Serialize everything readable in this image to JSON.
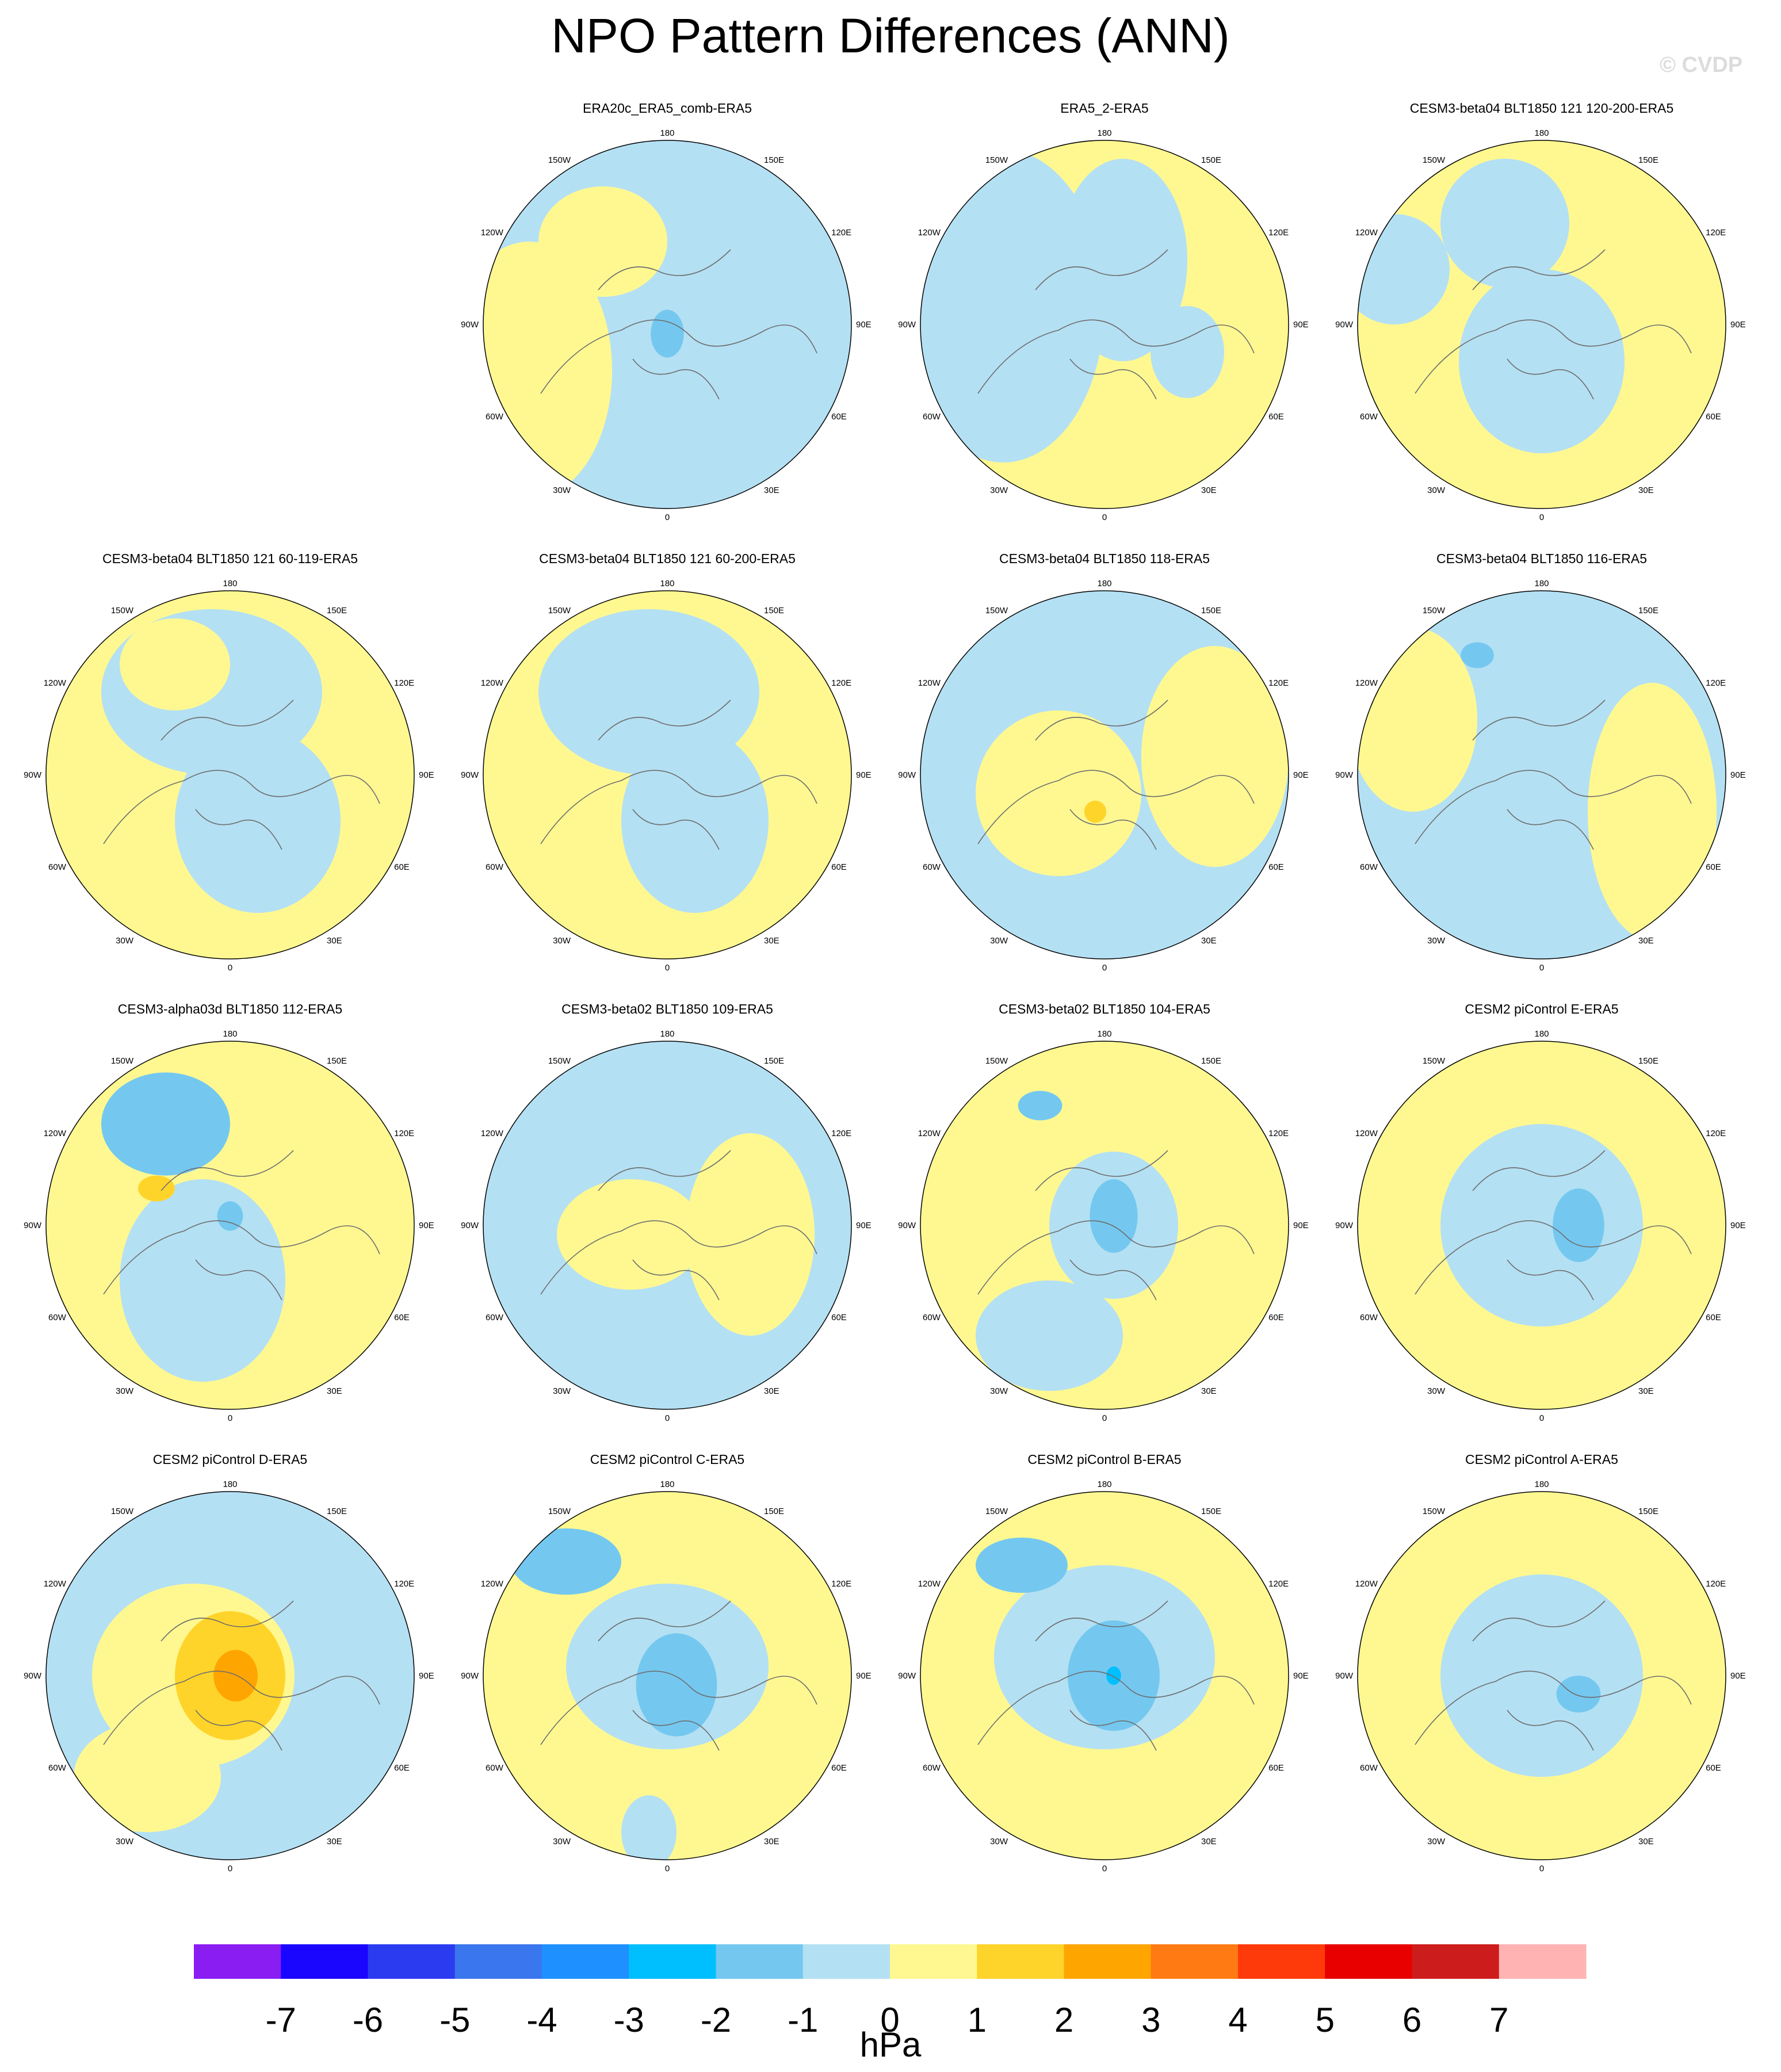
{
  "title": "NPO Pattern Differences (ANN)",
  "watermark": "© CVDP",
  "lon_labels": {
    "top": "180",
    "bottom": "0",
    "left_upper": "120W",
    "left_mid": "90W",
    "left_lower": "60W",
    "right_upper": "120E",
    "right_mid": "90E",
    "right_lower": "60E",
    "top_left": "150W",
    "top_right": "150E",
    "bottom_left": "30W",
    "bottom_right": "30E"
  },
  "panels": [
    {
      "title": "ERA20c_ERA5_comb-ERA5",
      "row": 0,
      "col": 1
    },
    {
      "title": "ERA5_2-ERA5",
      "row": 0,
      "col": 2
    },
    {
      "title": "CESM3-beta04 BLT1850 121 120-200-ERA5",
      "row": 0,
      "col": 3
    },
    {
      "title": "CESM3-beta04 BLT1850 121 60-119-ERA5",
      "row": 1,
      "col": 0
    },
    {
      "title": "CESM3-beta04 BLT1850 121 60-200-ERA5",
      "row": 1,
      "col": 1
    },
    {
      "title": "CESM3-beta04 BLT1850 118-ERA5",
      "row": 1,
      "col": 2
    },
    {
      "title": "CESM3-beta04 BLT1850 116-ERA5",
      "row": 1,
      "col": 3
    },
    {
      "title": "CESM3-alpha03d BLT1850 112-ERA5",
      "row": 2,
      "col": 0
    },
    {
      "title": "CESM3-beta02 BLT1850 109-ERA5",
      "row": 2,
      "col": 1
    },
    {
      "title": "CESM3-beta02 BLT1850 104-ERA5",
      "row": 2,
      "col": 2
    },
    {
      "title": "CESM2 piControl E-ERA5",
      "row": 2,
      "col": 3
    },
    {
      "title": "CESM2 piControl D-ERA5",
      "row": 3,
      "col": 0
    },
    {
      "title": "CESM2 piControl C-ERA5",
      "row": 3,
      "col": 1
    },
    {
      "title": "CESM2 piControl B-ERA5",
      "row": 3,
      "col": 2
    },
    {
      "title": "CESM2 piControl A-ERA5",
      "row": 3,
      "col": 3
    }
  ],
  "colorbar": {
    "units": "hPa",
    "labels": [
      "-7",
      "-6",
      "-5",
      "-4",
      "-3",
      "-2",
      "-1",
      "0",
      "1",
      "2",
      "3",
      "4",
      "5",
      "6",
      "7"
    ],
    "colors": [
      "#8a1df2",
      "#1a05ff",
      "#2b3cf0",
      "#3a76ee",
      "#1e90ff",
      "#00bfff",
      "#74c8f0",
      "#b4e0f3",
      "#fff891",
      "#ffd42a",
      "#ffa500",
      "#ff7a12",
      "#ff3a0a",
      "#e80000",
      "#cd1c1c",
      "#ffb3b3"
    ]
  }
}
